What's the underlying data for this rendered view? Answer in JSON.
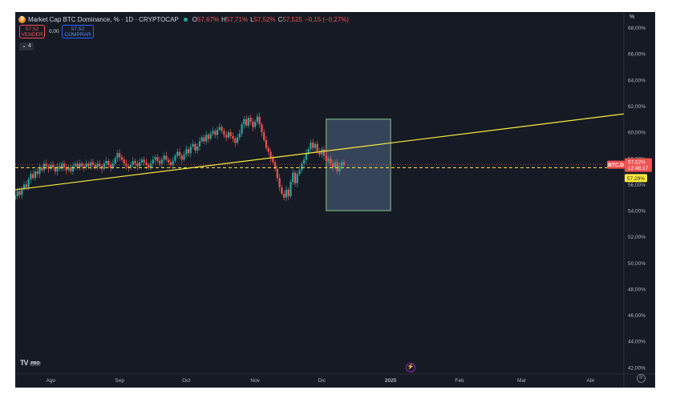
{
  "header": {
    "logo_icon": "bitcoin-icon",
    "title": "Market Cap BTC Dominance, % · 1D · CRYPTOCAP",
    "open_label": "O",
    "open": "57,67%",
    "high_label": "H",
    "high": "57,71%",
    "low_label": "L",
    "low": "57,52%",
    "close_label": "C",
    "close": "57,525",
    "change": "−0,15 (−0,27%)"
  },
  "trade": {
    "sell_price": "57,52",
    "sell_label": "VENDER",
    "spread": "0,00",
    "buy_price": "57,52",
    "buy_label": "COMPRAR",
    "indicators_count": "4"
  },
  "price_scale": {
    "unit": "%"
  },
  "tags": {
    "symbol": "BTC.D",
    "price": "57,52%",
    "countdown": "12:48:17",
    "line_price": "57,29%"
  },
  "footer": {
    "logo": "TV",
    "logo_badge": "PRO",
    "bolt_icon": "lightning-icon",
    "settings_icon": "gear-icon"
  },
  "colors": {
    "up": "#26a69a",
    "down": "#ef5350",
    "trendline": "#ffeb3b",
    "box_border": "#81c784",
    "box_fill": "#42536b",
    "background": "#161a25"
  },
  "chart_data": {
    "type": "candlestick",
    "symbol": "BTC.D",
    "yaxis": {
      "ticks": [
        42,
        44,
        46,
        48,
        50,
        52,
        54,
        56,
        58,
        60,
        62,
        64,
        66,
        68
      ],
      "tick_labels": [
        "42,00%",
        "44,00%",
        "46,00%",
        "48,00%",
        "50,00%",
        "52,00%",
        "54,00%",
        "56,00%",
        "58,00%",
        "60,00%",
        "62,00%",
        "64,00%",
        "66,00%",
        "68,00%"
      ],
      "range": [
        41.5,
        69.2
      ]
    },
    "xaxis": {
      "labels": [
        "Ago",
        "Sep",
        "Oct",
        "Nov",
        "Dic",
        "2025",
        "Feb",
        "Mar",
        "Abr"
      ],
      "label_days": [
        16,
        47,
        77,
        108,
        138,
        169,
        200,
        228,
        259
      ],
      "range": [
        0,
        274
      ]
    },
    "closes": [
      55.1,
      55.5,
      55.2,
      55.7,
      56.0,
      55.8,
      56.4,
      56.8,
      56.5,
      57.0,
      56.8,
      57.3,
      57.1,
      57.6,
      57.4,
      57.2,
      57.5,
      57.3,
      57.0,
      57.4,
      57.2,
      57.6,
      57.3,
      57.1,
      57.3,
      57.0,
      57.4,
      57.6,
      57.3,
      57.6,
      57.4,
      57.3,
      57.6,
      57.4,
      57.7,
      57.5,
      57.3,
      57.6,
      57.4,
      57.2,
      57.6,
      57.8,
      57.5,
      57.3,
      57.6,
      58.0,
      58.4,
      58.1,
      57.9,
      57.6,
      57.4,
      57.3,
      57.5,
      57.8,
      57.6,
      57.4,
      57.7,
      57.9,
      57.7,
      57.5,
      57.3,
      57.6,
      57.9,
      58.1,
      57.8,
      57.6,
      57.9,
      58.2,
      57.9,
      57.7,
      57.5,
      57.8,
      58.2,
      58.5,
      58.2,
      57.9,
      58.3,
      58.7,
      58.4,
      58.9,
      59.1,
      58.6,
      58.9,
      59.3,
      59.6,
      59.3,
      59.8,
      59.5,
      59.9,
      60.1,
      59.8,
      60.2,
      60.4,
      60.1,
      59.8,
      59.6,
      60.0,
      59.7,
      59.5,
      59.2,
      59.6,
      59.9,
      60.6,
      61.0,
      60.5,
      61.1,
      60.8,
      60.4,
      60.8,
      61.2,
      60.6,
      60.0,
      59.4,
      58.8,
      58.5,
      58.0,
      57.7,
      57.2,
      56.5,
      55.8,
      55.3,
      55.0,
      55.6,
      55.1,
      56.2,
      56.9,
      56.1,
      56.8,
      57.1,
      57.6,
      57.9,
      58.4,
      58.7,
      59.2,
      58.8,
      59.1,
      58.5,
      58.3,
      58.7,
      58.2,
      57.8,
      58.0,
      57.6,
      57.3,
      57.7,
      57.0,
      57.4,
      57.7,
      57.52
    ],
    "trendline": {
      "from": [
        0,
        55.6
      ],
      "to": [
        274,
        61.4
      ]
    },
    "box": {
      "x": [
        140,
        169
      ],
      "y": [
        54.0,
        61.0
      ]
    },
    "dashed_line": 57.29,
    "last_price": 57.52
  }
}
